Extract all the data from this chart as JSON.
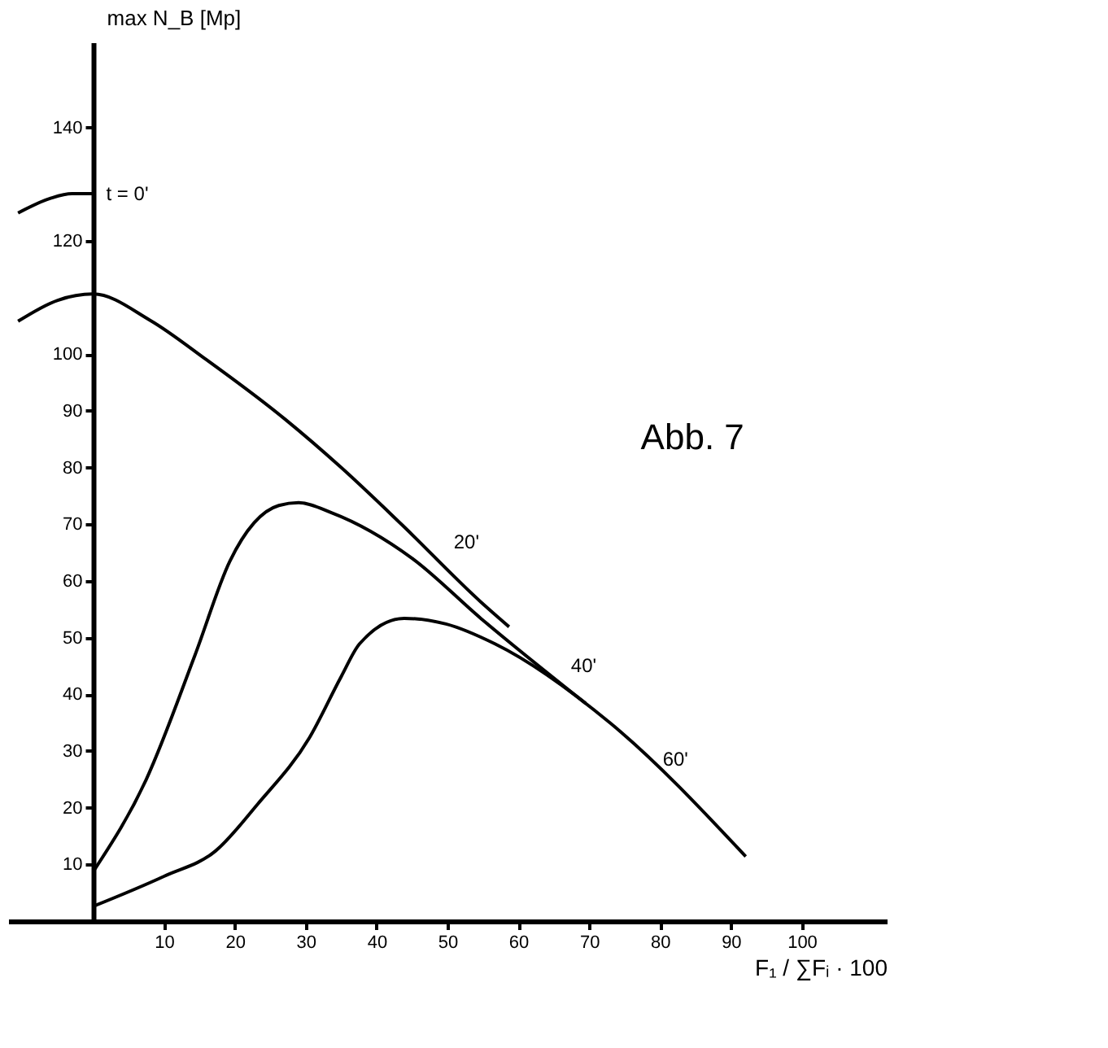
{
  "chart_data": {
    "type": "line",
    "xlabel": "F₁ / ∑Fᵢ · 100",
    "ylabel": "max N_B [Mp]",
    "xlim": [
      -12,
      112
    ],
    "ylim": [
      0,
      155
    ],
    "xticks": [
      10,
      20,
      30,
      40,
      50,
      60,
      70,
      80,
      90,
      100
    ],
    "yticks": [
      10,
      20,
      30,
      40,
      50,
      60,
      70,
      80,
      90,
      100,
      120,
      140
    ],
    "grid": false,
    "line_style": "solid",
    "series": [
      {
        "name": "t = 0'",
        "color": "#000000",
        "x": [
          -10.6,
          -6,
          -3,
          0
        ],
        "values": [
          124.9,
          127.5,
          128.3,
          128.3
        ]
      },
      {
        "name": "20'",
        "color": "#000000",
        "x": [
          -10.6,
          -5,
          0,
          8,
          16,
          27,
          35,
          43.5,
          54.7,
          58.7
        ],
        "values": [
          105.8,
          109.5,
          110.6,
          106,
          99,
          88.6,
          80,
          70,
          56.3,
          51.9
        ]
      },
      {
        "name": "40'",
        "color": "#000000",
        "x": [
          0,
          7.5,
          14.4,
          19.3,
          26.2,
          29,
          33.7,
          45,
          54.7,
          69.5
        ],
        "values": [
          8.7,
          25,
          47,
          63.5,
          73.3,
          73.8,
          72,
          64,
          53.4,
          38.4
        ]
      },
      {
        "name": "60'",
        "color": "#000000",
        "x": [
          0,
          10,
          17.3,
          23.2,
          30.5,
          35,
          37.6,
          43.9,
          49.8,
          56.7,
          73,
          92.1
        ],
        "values": [
          2.6,
          7.9,
          12.4,
          20.6,
          32.3,
          43.1,
          48.9,
          53.4,
          52.4,
          48.9,
          34.9,
          11.4
        ]
      }
    ],
    "annotations": [
      "Abb. 7"
    ]
  }
}
